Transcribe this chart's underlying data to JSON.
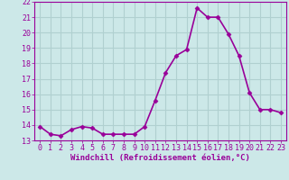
{
  "x": [
    0,
    1,
    2,
    3,
    4,
    5,
    6,
    7,
    8,
    9,
    10,
    11,
    12,
    13,
    14,
    15,
    16,
    17,
    18,
    19,
    20,
    21,
    22,
    23
  ],
  "y": [
    13.9,
    13.4,
    13.3,
    13.7,
    13.9,
    13.8,
    13.4,
    13.4,
    13.4,
    13.4,
    13.9,
    15.6,
    17.4,
    18.5,
    18.9,
    21.6,
    21.0,
    21.0,
    19.9,
    18.5,
    16.1,
    15.0,
    15.0,
    14.8
  ],
  "line_color": "#990099",
  "marker": "D",
  "marker_size": 2.5,
  "xlabel": "Windchill (Refroidissement éolien,°C)",
  "xlim": [
    -0.5,
    23.5
  ],
  "ylim": [
    13,
    22
  ],
  "yticks": [
    13,
    14,
    15,
    16,
    17,
    18,
    19,
    20,
    21,
    22
  ],
  "xticks": [
    0,
    1,
    2,
    3,
    4,
    5,
    6,
    7,
    8,
    9,
    10,
    11,
    12,
    13,
    14,
    15,
    16,
    17,
    18,
    19,
    20,
    21,
    22,
    23
  ],
  "bg_color": "#cce8e8",
  "grid_color": "#b0d0d0",
  "line_color_spine": "#990099",
  "tick_color": "#990099",
  "label_color": "#990099",
  "xlabel_fontsize": 6.5,
  "tick_fontsize": 6,
  "line_width": 1.2
}
